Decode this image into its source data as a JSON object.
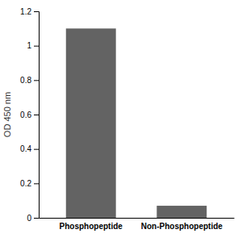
{
  "chart_data": {
    "type": "bar",
    "categories": [
      "Phosphopeptide",
      "Non-Phosphopeptide"
    ],
    "values": [
      1.1,
      0.07
    ],
    "color": "#636363",
    "ylabel": "OD 450 nm",
    "ylim": [
      0,
      1.2
    ],
    "yticks": [
      0,
      0.2,
      0.4,
      0.6,
      0.8,
      1,
      1.2
    ],
    "grid": false
  }
}
